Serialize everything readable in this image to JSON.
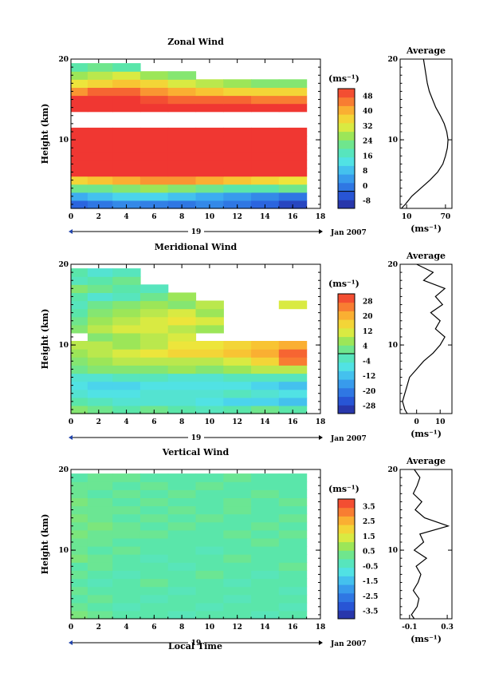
{
  "date_label": "Jan 2007",
  "day_label": "19",
  "xlabel_bottom": "Local Time",
  "average_title": "Average",
  "unit_label": "(ms⁻¹)",
  "chart_data": [
    {
      "type": "heatmap",
      "title": "Zonal Wind",
      "ylabel": "Height (km)",
      "xlim": [
        0,
        18
      ],
      "ylim": [
        1.5,
        20
      ],
      "x_ticks": [
        0,
        2,
        4,
        6,
        8,
        10,
        12,
        14,
        16,
        18
      ],
      "y_ticks": [
        10,
        20
      ],
      "colorbar": {
        "unit": "(ms⁻¹)",
        "range": [
          -8,
          48
        ],
        "tick_values": [
          48,
          40,
          32,
          24,
          16,
          8,
          0,
          -8
        ],
        "contour_level": 0
      },
      "x": [
        0.5,
        2,
        4,
        6,
        8,
        10,
        12,
        14,
        16.5
      ],
      "heights": [
        2,
        3,
        4,
        5,
        6,
        7,
        8,
        9,
        10,
        11,
        12,
        13,
        14,
        15,
        16,
        17,
        18,
        19
      ],
      "values": [
        [
          0,
          2,
          4,
          3,
          2,
          4,
          2,
          0,
          -4
        ],
        [
          8,
          10,
          12,
          12,
          10,
          8,
          6,
          4,
          2
        ],
        [
          22,
          22,
          24,
          26,
          24,
          22,
          20,
          20,
          22
        ],
        [
          34,
          36,
          38,
          40,
          40,
          38,
          36,
          34,
          32
        ],
        [
          48,
          48,
          48,
          48,
          48,
          48,
          48,
          48,
          48
        ],
        [
          48,
          48,
          48,
          48,
          48,
          48,
          48,
          48,
          48
        ],
        [
          48,
          48,
          48,
          48,
          48,
          48,
          48,
          48,
          48
        ],
        [
          48,
          48,
          48,
          48,
          48,
          48,
          48,
          48,
          48
        ],
        [
          48,
          48,
          48,
          48,
          48,
          48,
          48,
          48,
          48
        ],
        [
          48,
          48,
          48,
          48,
          48,
          48,
          48,
          48,
          48
        ],
        [
          null,
          null,
          null,
          null,
          null,
          null,
          null,
          null,
          null
        ],
        [
          null,
          null,
          null,
          null,
          null,
          null,
          null,
          null,
          null
        ],
        [
          48,
          48,
          48,
          48,
          48,
          48,
          48,
          48,
          48
        ],
        [
          48,
          48,
          48,
          46,
          44,
          44,
          44,
          42,
          42
        ],
        [
          40,
          44,
          44,
          40,
          38,
          36,
          34,
          34,
          34
        ],
        [
          32,
          34,
          36,
          34,
          30,
          28,
          26,
          24,
          24
        ],
        [
          26,
          28,
          30,
          26,
          24,
          null,
          null,
          null,
          null
        ],
        [
          20,
          22,
          20,
          null,
          null,
          null,
          null,
          null,
          null
        ]
      ],
      "average_profile": {
        "x_ticks": [
          10,
          70
        ],
        "xlim": [
          0,
          80
        ],
        "heights": [
          1.5,
          2,
          3,
          4,
          5,
          6,
          7,
          8,
          9,
          10,
          11,
          12,
          13,
          14,
          15,
          16,
          17,
          18,
          19,
          20
        ],
        "values": [
          2,
          8,
          18,
          32,
          46,
          58,
          66,
          70,
          73,
          74,
          72,
          68,
          62,
          55,
          50,
          45,
          42,
          40,
          38,
          36
        ]
      }
    },
    {
      "type": "heatmap",
      "title": "Meridional Wind",
      "ylabel": "Height (km)",
      "xlim": [
        0,
        18
      ],
      "ylim": [
        1.5,
        20
      ],
      "x_ticks": [
        0,
        2,
        4,
        6,
        8,
        10,
        12,
        14,
        16,
        18
      ],
      "y_ticks": [
        10,
        20
      ],
      "colorbar": {
        "unit": "(ms⁻¹)",
        "range": [
          -28,
          28
        ],
        "tick_values": [
          28,
          20,
          12,
          4,
          -4,
          -12,
          -20,
          -28
        ],
        "contour_level": 0
      },
      "x": [
        0.5,
        2,
        4,
        6,
        8,
        10,
        12,
        14,
        16.5
      ],
      "heights": [
        2,
        3,
        4,
        5,
        6,
        7,
        8,
        9,
        10,
        11,
        12,
        13,
        14,
        15,
        16,
        17,
        18,
        19
      ],
      "values": [
        [
          4,
          2,
          0,
          2,
          0,
          -2,
          0,
          2,
          0
        ],
        [
          0,
          -2,
          -4,
          -4,
          -4,
          -6,
          -8,
          -8,
          -10
        ],
        [
          -4,
          -6,
          -6,
          -4,
          -4,
          -4,
          -2,
          -4,
          -6
        ],
        [
          -6,
          -8,
          -8,
          -6,
          -6,
          -6,
          -6,
          -8,
          -10
        ],
        [
          -4,
          -4,
          -2,
          -2,
          -4,
          -4,
          -2,
          -2,
          -2
        ],
        [
          2,
          4,
          4,
          4,
          6,
          4,
          6,
          8,
          8
        ],
        [
          4,
          6,
          8,
          8,
          8,
          8,
          10,
          14,
          22
        ],
        [
          6,
          8,
          10,
          12,
          14,
          14,
          16,
          18,
          24
        ],
        [
          8,
          8,
          6,
          8,
          12,
          12,
          14,
          16,
          18
        ],
        [
          null,
          4,
          6,
          8,
          10,
          null,
          null,
          null,
          null
        ],
        [
          4,
          8,
          10,
          10,
          8,
          6,
          null,
          null,
          null
        ],
        [
          2,
          6,
          8,
          10,
          12,
          10,
          null,
          null,
          null
        ],
        [
          0,
          4,
          6,
          8,
          10,
          6,
          null,
          null,
          null
        ],
        [
          -2,
          2,
          4,
          6,
          4,
          8,
          null,
          null,
          10
        ],
        [
          0,
          -4,
          -2,
          2,
          6,
          null,
          null,
          null,
          null
        ],
        [
          4,
          2,
          0,
          -2,
          null,
          null,
          null,
          null,
          null
        ],
        [
          -2,
          0,
          2,
          null,
          null,
          null,
          null,
          null,
          null
        ],
        [
          0,
          -4,
          -2,
          null,
          null,
          null,
          null,
          null,
          null
        ]
      ],
      "average_profile": {
        "x_ticks": [
          0,
          10
        ],
        "xlim": [
          -7,
          15
        ],
        "heights": [
          1.5,
          2,
          3,
          4,
          5,
          6,
          7,
          8,
          9,
          10,
          11,
          12,
          13,
          14,
          15,
          16,
          17,
          18,
          19,
          20
        ],
        "values": [
          -4,
          -5,
          -6,
          -5,
          -4,
          -3,
          0,
          3,
          7,
          10,
          12,
          8,
          10,
          6,
          11,
          8,
          12,
          3,
          7,
          0
        ]
      }
    },
    {
      "type": "heatmap",
      "title": "Vertical Wind",
      "ylabel": "Height (km)",
      "xlabel": "Local Time",
      "xlim": [
        0,
        18
      ],
      "ylim": [
        1.5,
        20
      ],
      "x_ticks": [
        0,
        2,
        4,
        6,
        8,
        10,
        12,
        14,
        16,
        18
      ],
      "y_ticks": [
        10,
        20
      ],
      "colorbar": {
        "unit": "(ms⁻¹)",
        "range": [
          -3.5,
          3.5
        ],
        "tick_values": [
          3.5,
          2.5,
          1.5,
          0.5,
          -0.5,
          -1.5,
          -2.5,
          -3.5
        ]
      },
      "x": [
        0.5,
        2,
        4,
        6,
        8,
        10,
        12,
        14,
        16.5
      ],
      "heights": [
        2,
        3,
        4,
        5,
        6,
        7,
        8,
        9,
        10,
        11,
        12,
        13,
        14,
        15,
        16,
        17,
        18,
        19
      ],
      "values": [
        [
          0.4,
          0.2,
          0.0,
          0.0,
          -0.2,
          0.0,
          0.0,
          -0.2,
          0.0
        ],
        [
          0.2,
          0.0,
          -0.2,
          0.0,
          0.0,
          -0.2,
          0.0,
          0.0,
          -0.2
        ],
        [
          0.0,
          0.2,
          0.0,
          -0.2,
          0.0,
          0.0,
          -0.2,
          0.0,
          0.0
        ],
        [
          0.2,
          0.0,
          0.0,
          0.0,
          -0.2,
          0.0,
          0.0,
          0.0,
          -0.2
        ],
        [
          0.0,
          -0.2,
          0.0,
          0.2,
          0.0,
          0.0,
          -0.2,
          0.0,
          0.0
        ],
        [
          0.2,
          0.0,
          -0.2,
          0.0,
          0.0,
          0.2,
          0.0,
          -0.2,
          0.0
        ],
        [
          0.0,
          0.2,
          0.0,
          0.0,
          -0.2,
          0.0,
          0.0,
          0.0,
          0.2
        ],
        [
          0.4,
          0.2,
          0.0,
          -0.2,
          0.0,
          0.0,
          0.2,
          0.0,
          0.0
        ],
        [
          0.2,
          0.0,
          0.2,
          0.0,
          0.0,
          -0.2,
          0.0,
          0.0,
          0.0
        ],
        [
          0.2,
          0.2,
          0.0,
          0.0,
          0.0,
          0.0,
          0.0,
          0.2,
          0.0
        ],
        [
          0.4,
          0.2,
          0.2,
          0.2,
          0.0,
          0.0,
          0.2,
          0.0,
          0.2
        ],
        [
          0.2,
          0.4,
          0.2,
          0.0,
          0.2,
          0.0,
          0.0,
          0.2,
          0.0
        ],
        [
          0.4,
          0.2,
          0.0,
          0.2,
          0.0,
          0.2,
          0.0,
          0.0,
          0.2
        ],
        [
          0.2,
          0.2,
          0.2,
          0.0,
          0.2,
          0.0,
          0.2,
          0.0,
          0.0
        ],
        [
          0.4,
          0.2,
          0.0,
          0.2,
          0.0,
          0.0,
          0.2,
          0.0,
          0.2
        ],
        [
          0.2,
          0.0,
          0.2,
          0.0,
          0.2,
          0.0,
          0.0,
          0.2,
          0.0
        ],
        [
          0.2,
          0.2,
          0.0,
          0.2,
          0.0,
          0.2,
          0.0,
          0.0,
          0.0
        ],
        [
          0.0,
          0.2,
          0.2,
          0.0,
          0.0,
          0.0,
          0.2,
          0.0,
          0.0
        ]
      ],
      "average_profile": {
        "x_ticks": [
          -0.1,
          0.3
        ],
        "xlim": [
          -0.2,
          0.35
        ],
        "heights": [
          1.5,
          2,
          3,
          4,
          5,
          6,
          7,
          8,
          9,
          10,
          11,
          12,
          13,
          14,
          15,
          16,
          17,
          18,
          19,
          20
        ],
        "values": [
          -0.05,
          -0.08,
          -0.02,
          0.0,
          -0.06,
          -0.01,
          0.02,
          -0.03,
          0.08,
          -0.05,
          0.05,
          0.01,
          0.31,
          0.06,
          -0.04,
          0.03,
          -0.06,
          -0.02,
          0.01,
          -0.05
        ]
      }
    }
  ]
}
